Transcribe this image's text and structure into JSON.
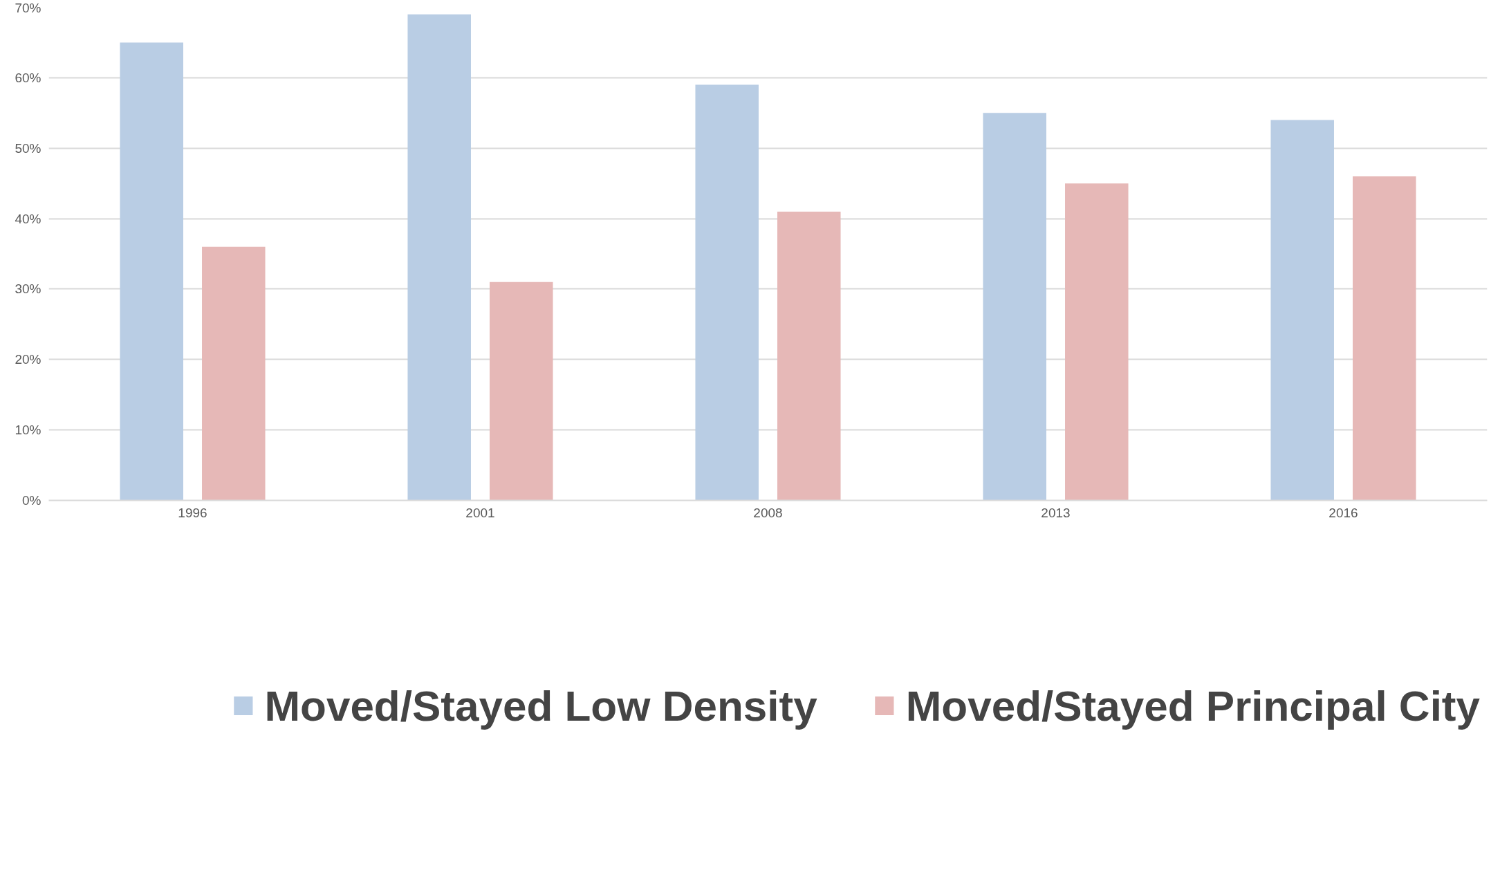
{
  "chart_data": {
    "type": "bar",
    "categories": [
      "1996",
      "2001",
      "2008",
      "2013",
      "2016"
    ],
    "series": [
      {
        "name": "Moved/Stayed Low Density",
        "color": "#b9cde4",
        "values": [
          65,
          69,
          59,
          55,
          54
        ]
      },
      {
        "name": "Moved/Stayed Principal City",
        "color": "#e6b8b7",
        "values": [
          36,
          31,
          41,
          45,
          46
        ]
      }
    ],
    "ylim": [
      0,
      70
    ],
    "yticks": [
      {
        "value": 0,
        "label": "0%"
      },
      {
        "value": 10,
        "label": "10%"
      },
      {
        "value": 20,
        "label": "20%"
      },
      {
        "value": 30,
        "label": "30%"
      },
      {
        "value": 40,
        "label": "40%"
      },
      {
        "value": 50,
        "label": "50%"
      },
      {
        "value": 60,
        "label": "60%"
      },
      {
        "value": 70,
        "label": "70%"
      }
    ],
    "grid": "y",
    "legend": "bottom"
  }
}
